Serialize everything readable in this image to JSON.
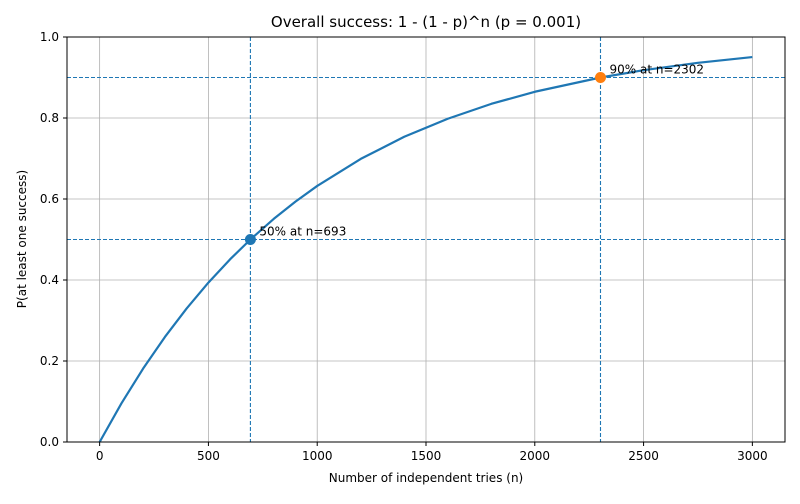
{
  "chart_data": {
    "type": "line",
    "title": "Overall success: 1 - (1 - p)^n  (p = 0.001)",
    "xlabel": "Number of independent tries (n)",
    "ylabel": "P(at least one success)",
    "xlim": [
      -150,
      3150
    ],
    "ylim": [
      0.0,
      1.0
    ],
    "grid": true,
    "x_ticks": [
      0,
      500,
      1000,
      1500,
      2000,
      2500,
      3000
    ],
    "x_tick_labels": [
      "0",
      "500",
      "1000",
      "1500",
      "2000",
      "2500",
      "3000"
    ],
    "y_ticks": [
      0.0,
      0.2,
      0.4,
      0.6,
      0.8,
      1.0
    ],
    "y_tick_labels": [
      "0.0",
      "0.2",
      "0.4",
      "0.6",
      "0.8",
      "1.0"
    ],
    "p": 0.001,
    "series": [
      {
        "name": "1 - (1 - p)^n",
        "color": "#1f77b4",
        "x": [
          0,
          100,
          200,
          300,
          400,
          500,
          600,
          693,
          800,
          900,
          1000,
          1200,
          1400,
          1600,
          1800,
          2000,
          2302,
          2500,
          2750,
          3000
        ],
        "y": [
          0.0,
          0.0952,
          0.1814,
          0.2594,
          0.3298,
          0.3936,
          0.4513,
          0.5,
          0.5509,
          0.5936,
          0.6323,
          0.699,
          0.7536,
          0.7982,
          0.8349,
          0.8648,
          0.9,
          0.918,
          0.9362,
          0.9504
        ]
      }
    ],
    "reference_lines": [
      {
        "orientation": "horizontal",
        "value": 0.5,
        "color": "#1f77b4",
        "style": "dashed"
      },
      {
        "orientation": "horizontal",
        "value": 0.9,
        "color": "#1f77b4",
        "style": "dashed"
      },
      {
        "orientation": "vertical",
        "value": 693,
        "color": "#1f77b4",
        "style": "dashed"
      },
      {
        "orientation": "vertical",
        "value": 2302,
        "color": "#1f77b4",
        "style": "dashed"
      }
    ],
    "markers": [
      {
        "x": 693,
        "y": 0.5,
        "color": "#1f77b4",
        "label": "50% at n=693"
      },
      {
        "x": 2302,
        "y": 0.9,
        "color": "#ff7f0e",
        "label": "90% at n=2302"
      }
    ]
  }
}
